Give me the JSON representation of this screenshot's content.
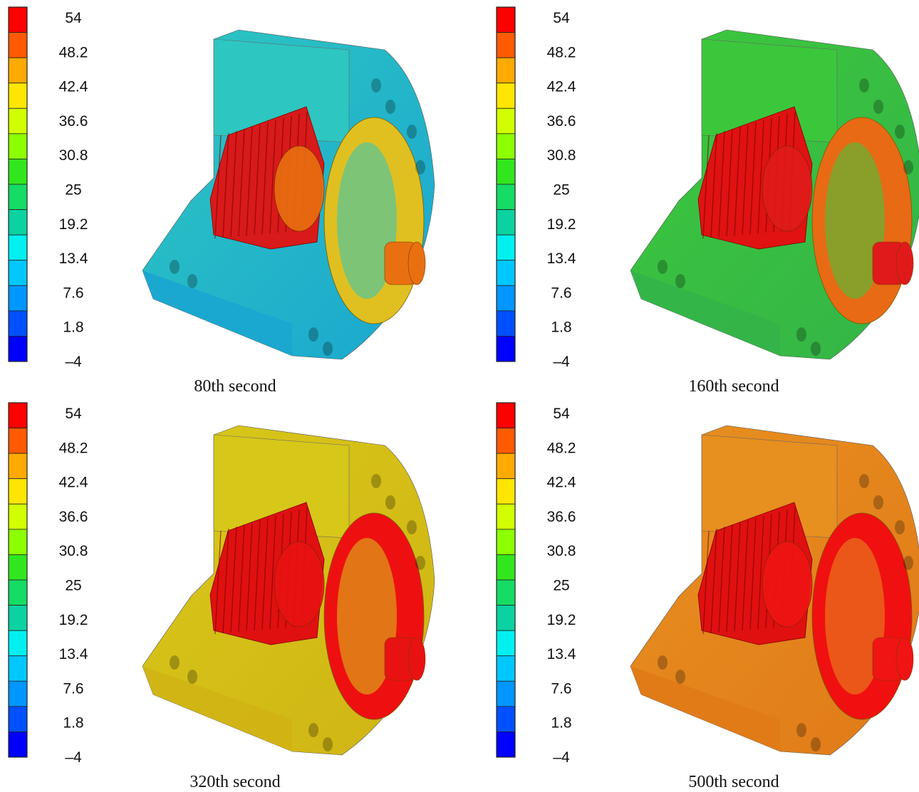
{
  "legend": {
    "ticks": [
      "54",
      "48.2",
      "42.4",
      "36.6",
      "30.8",
      "25",
      "19.2",
      "13.4",
      "7.6",
      "1.8",
      "–4"
    ],
    "colors": [
      "#ff0000",
      "#ff5a00",
      "#ffaa00",
      "#ffe600",
      "#d2ff00",
      "#8cff00",
      "#32e61e",
      "#14dc64",
      "#0ad2a0",
      "#00f0f0",
      "#00c8ff",
      "#0096ff",
      "#0050ff",
      "#0000ff"
    ]
  },
  "panels": [
    {
      "caption": "80th second",
      "temperature_field": {
        "body": "#2ec7c0",
        "front": "#1aa6d0",
        "ring": "#e0c020",
        "gear": "#d81a1a",
        "hub": "#e87010"
      }
    },
    {
      "caption": "160th second",
      "temperature_field": {
        "body": "#3cc83c",
        "front": "#34b448",
        "ring": "#e86a14",
        "gear": "#e01212",
        "hub": "#e01a1a"
      }
    },
    {
      "caption": "320th second",
      "temperature_field": {
        "body": "#d8c81a",
        "front": "#d0b414",
        "ring": "#ee1010",
        "gear": "#e01010",
        "hub": "#e81212"
      }
    },
    {
      "caption": "500th second",
      "temperature_field": {
        "body": "#e89020",
        "front": "#e07a18",
        "ring": "#f01010",
        "gear": "#e01010",
        "hub": "#f01414"
      }
    }
  ]
}
